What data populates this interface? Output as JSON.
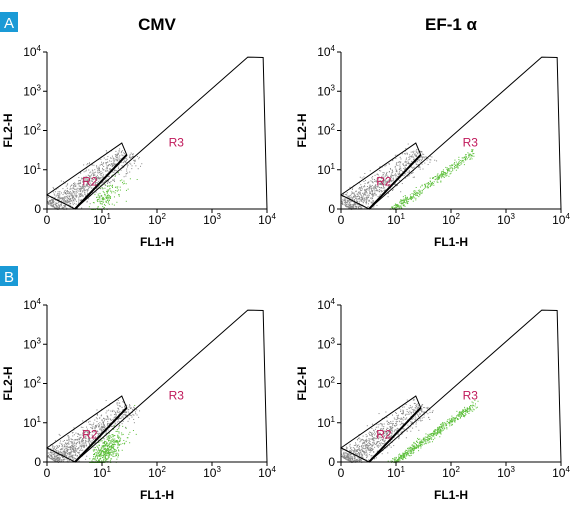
{
  "figure": {
    "column_titles": [
      "CMV",
      "EF-1 α"
    ],
    "row_labels": [
      "A",
      "B"
    ],
    "panels": [
      {
        "x_label": "FL1-H",
        "y_label": "FL2-H",
        "gates": [
          "R2",
          "R3"
        ]
      },
      {
        "x_label": "FL1-H",
        "y_label": "FL2-H",
        "gates": [
          "R2",
          "R3"
        ]
      },
      {
        "x_label": "FL1-H",
        "y_label": "FL2-H",
        "gates": [
          "R2",
          "R3"
        ]
      },
      {
        "x_label": "FL1-H",
        "y_label": "FL2-H",
        "gates": [
          "R2",
          "R3"
        ]
      }
    ],
    "xlim": [
      0,
      10000
    ],
    "ylim": [
      0,
      10000
    ],
    "xticks": [
      0,
      {
        "value": 10,
        "label": "10",
        "exponent": "1"
      },
      {
        "value": 100,
        "label": "10",
        "exponent": "2"
      },
      {
        "value": 1000,
        "label": "10",
        "exponent": "3"
      },
      {
        "value": 10000,
        "label": "10",
        "exponent": "4"
      }
    ],
    "yticks": [
      0,
      {
        "value": 10,
        "label": "10",
        "exponent": "1"
      },
      {
        "value": 100,
        "label": "10",
        "exponent": "2"
      },
      {
        "value": 1000,
        "label": "10",
        "exponent": "3"
      },
      {
        "value": 10000,
        "label": "10",
        "exponent": "4"
      }
    ]
  }
}
